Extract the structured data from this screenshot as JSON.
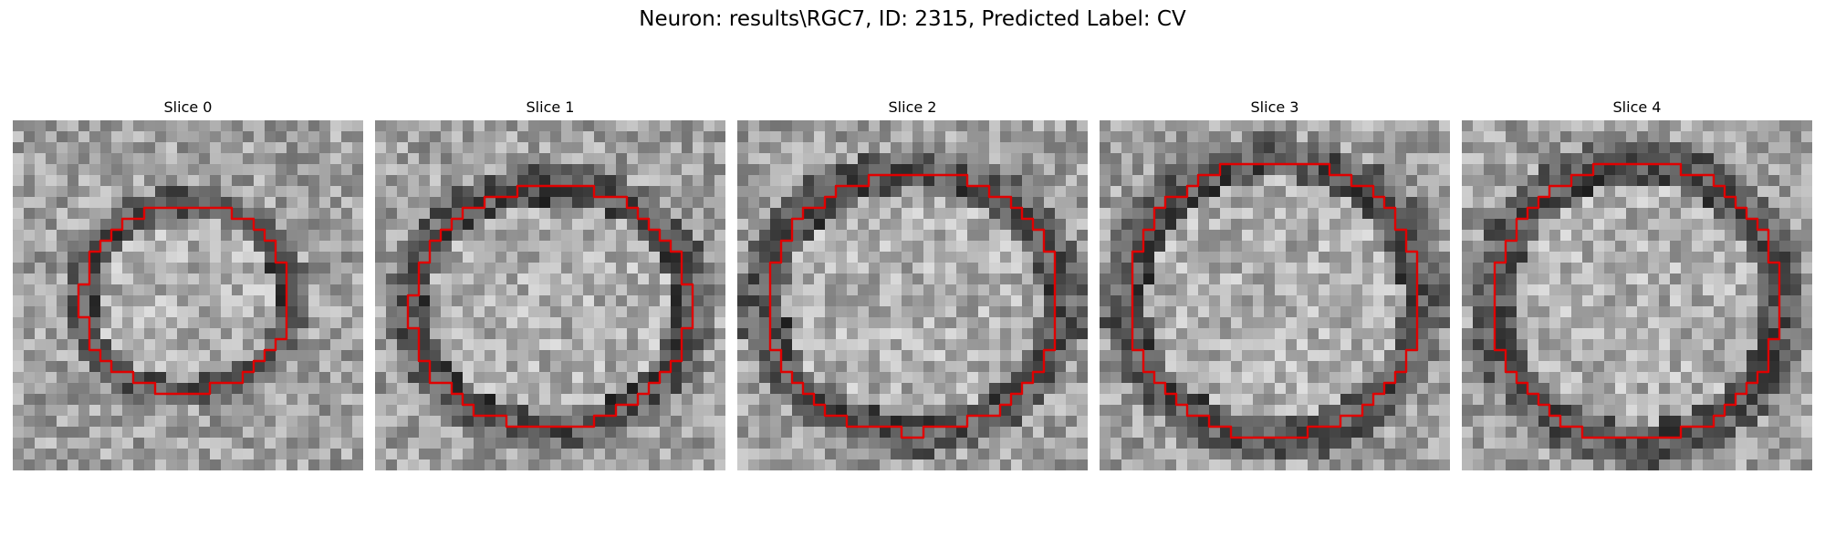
{
  "figure": {
    "title": "Neuron: results\\RGC7, ID: 2315, Predicted Label: CV",
    "contour_color": "#e00000",
    "colormap": "gray"
  },
  "panels": [
    {
      "title": "Slice 0"
    },
    {
      "title": "Slice 1"
    },
    {
      "title": "Slice 2"
    },
    {
      "title": "Slice 3"
    },
    {
      "title": "Slice 4"
    }
  ]
}
